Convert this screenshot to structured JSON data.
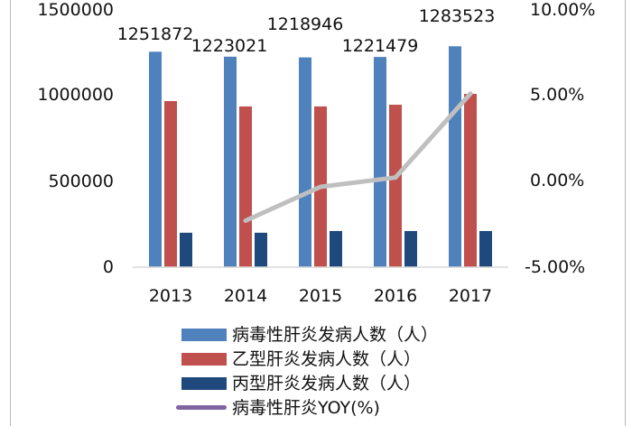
{
  "chart_data": {
    "type": "bar",
    "title": "",
    "xlabel": "",
    "ylabel": "",
    "categories": [
      "2013",
      "2014",
      "2015",
      "2016",
      "2017"
    ],
    "series": [
      {
        "name": "病毒性肝炎发病人数（人）",
        "type": "bar",
        "axis": "left",
        "color": "#4F81BD",
        "values": [
          1251872,
          1223021,
          1218946,
          1221479,
          1283523
        ],
        "data_labels": [
          "1251872",
          "1223021",
          "1218946",
          "1221479",
          "1283523"
        ]
      },
      {
        "name": "乙型肝炎发病人数（人）",
        "type": "bar",
        "axis": "left",
        "color": "#C0504D",
        "values": [
          965000,
          934000,
          934000,
          944000,
          1007000
        ]
      },
      {
        "name": "丙型肝炎发病人数（人）",
        "type": "bar",
        "axis": "left",
        "color": "#1F497D",
        "values": [
          200000,
          200000,
          210000,
          210000,
          210000
        ]
      },
      {
        "name": "病毒性肝炎YOY(%)",
        "type": "line",
        "axis": "right",
        "color": "#BFBFBF",
        "legend_color": "#8064A2",
        "values": [
          null,
          -2.3,
          -0.33,
          0.21,
          5.08
        ]
      }
    ],
    "left_axis": {
      "ylim": [
        0,
        1500000
      ],
      "ticks": [
        "0",
        "500000",
        "1000000",
        "1500000"
      ]
    },
    "right_axis": {
      "ylim": [
        -5,
        10
      ],
      "ticks": [
        "-5.00%",
        "0.00%",
        "5.00%",
        "10.00%"
      ]
    },
    "grid": false,
    "legend_position": "bottom"
  },
  "axes": {
    "left_ticks": [
      "1500000",
      "1000000",
      "500000",
      "0"
    ],
    "right_ticks": [
      "10.00%",
      "5.00%",
      "0.00%",
      "-5.00%"
    ],
    "categories": [
      "2013",
      "2014",
      "2015",
      "2016",
      "2017"
    ]
  },
  "data_labels": [
    "1251872",
    "1223021",
    "1218946",
    "1221479",
    "1283523"
  ],
  "legend": {
    "items": [
      {
        "label": "病毒性肝炎发病人数（人）",
        "color": "#4F81BD",
        "kind": "bar"
      },
      {
        "label": "乙型肝炎发病人数（人）",
        "color": "#C0504D",
        "kind": "bar"
      },
      {
        "label": "丙型肝炎发病人数（人）",
        "color": "#1F497D",
        "kind": "bar"
      },
      {
        "label": "病毒性肝炎YOY(%)",
        "color": "#8064A2",
        "kind": "line"
      }
    ]
  }
}
